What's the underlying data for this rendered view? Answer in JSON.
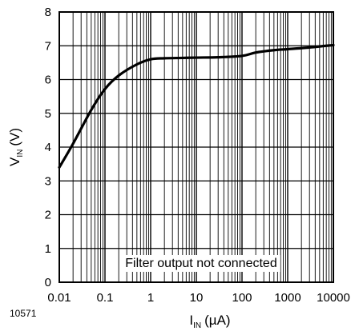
{
  "chart_data": {
    "type": "line",
    "x_scale": "log",
    "xlim": [
      0.01,
      10000
    ],
    "ylim": [
      0,
      8
    ],
    "grid": true,
    "xlabel_main": "I",
    "xlabel_sub": "IN",
    "xlabel_unit": "(µA)",
    "ylabel_main": "V",
    "ylabel_sub": "IN",
    "ylabel_unit": "(V)",
    "x_ticks": [
      {
        "value": 0.01,
        "label": "0.01"
      },
      {
        "value": 0.1,
        "label": "0.1"
      },
      {
        "value": 1,
        "label": "1"
      },
      {
        "value": 10,
        "label": "10"
      },
      {
        "value": 100,
        "label": "100"
      },
      {
        "value": 1000,
        "label": "1000"
      },
      {
        "value": 10000,
        "label": "10000"
      }
    ],
    "y_ticks": [
      {
        "value": 0,
        "label": "0"
      },
      {
        "value": 1,
        "label": "1"
      },
      {
        "value": 2,
        "label": "2"
      },
      {
        "value": 3,
        "label": "3"
      },
      {
        "value": 4,
        "label": "4"
      },
      {
        "value": 5,
        "label": "5"
      },
      {
        "value": 6,
        "label": "6"
      },
      {
        "value": 7,
        "label": "7"
      },
      {
        "value": 8,
        "label": "8"
      }
    ],
    "annotation": "Filter output not connected",
    "figure_id": "10571",
    "series": [
      {
        "color": "#000000",
        "points": [
          {
            "x": 0.01,
            "y": 3.4
          },
          {
            "x": 0.02,
            "y": 4.1
          },
          {
            "x": 0.05,
            "y": 5.1
          },
          {
            "x": 0.1,
            "y": 5.72
          },
          {
            "x": 0.2,
            "y": 6.12
          },
          {
            "x": 0.5,
            "y": 6.45
          },
          {
            "x": 1,
            "y": 6.6
          },
          {
            "x": 2,
            "y": 6.63
          },
          {
            "x": 5,
            "y": 6.64
          },
          {
            "x": 10,
            "y": 6.65
          },
          {
            "x": 30,
            "y": 6.66
          },
          {
            "x": 100,
            "y": 6.7
          },
          {
            "x": 200,
            "y": 6.8
          },
          {
            "x": 500,
            "y": 6.87
          },
          {
            "x": 1000,
            "y": 6.9
          },
          {
            "x": 3000,
            "y": 6.95
          },
          {
            "x": 10000,
            "y": 7.02
          }
        ]
      }
    ]
  }
}
